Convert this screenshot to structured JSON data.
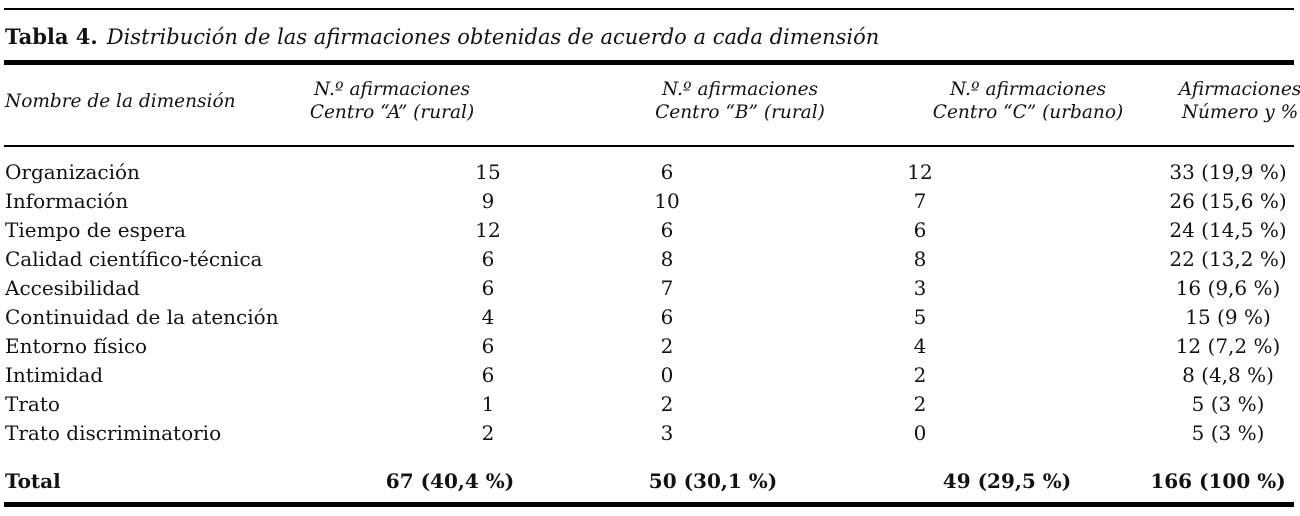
{
  "caption": {
    "label": "Tabla 4.",
    "text": "Distribución de las afirmaciones obtenidas de acuerdo a cada dimensión"
  },
  "table": {
    "columns": [
      {
        "header_lines": [
          "Nombre de la dimensión"
        ]
      },
      {
        "header_lines": [
          "N.º afirmaciones",
          "Centro “A” (rural)"
        ]
      },
      {
        "header_lines": [
          "N.º afirmaciones",
          "Centro “B” (rural)"
        ]
      },
      {
        "header_lines": [
          "N.º afirmaciones",
          "Centro “C” (urbano)"
        ]
      },
      {
        "header_lines": [
          "Afirmaciones",
          "Número y %"
        ]
      }
    ],
    "rows": [
      {
        "dimension": "Organización",
        "centro_a": "15",
        "centro_b": "6",
        "centro_c": "12",
        "afirmaciones": "33 (19,9 %)"
      },
      {
        "dimension": "Información",
        "centro_a": "9",
        "centro_b": "10",
        "centro_c": "7",
        "afirmaciones": "26 (15,6 %)"
      },
      {
        "dimension": "Tiempo de espera",
        "centro_a": "12",
        "centro_b": "6",
        "centro_c": "6",
        "afirmaciones": "24 (14,5 %)"
      },
      {
        "dimension": "Calidad científico-técnica",
        "centro_a": "6",
        "centro_b": "8",
        "centro_c": "8",
        "afirmaciones": "22 (13,2 %)"
      },
      {
        "dimension": "Accesibilidad",
        "centro_a": "6",
        "centro_b": "7",
        "centro_c": "3",
        "afirmaciones": "16 (9,6 %)"
      },
      {
        "dimension": "Continuidad de la atención",
        "centro_a": "4",
        "centro_b": "6",
        "centro_c": "5",
        "afirmaciones": "15 (9 %)"
      },
      {
        "dimension": "Entorno físico",
        "centro_a": "6",
        "centro_b": "2",
        "centro_c": "4",
        "afirmaciones": "12 (7,2 %)"
      },
      {
        "dimension": "Intimidad",
        "centro_a": "6",
        "centro_b": "0",
        "centro_c": "2",
        "afirmaciones": "8 (4,8 %)"
      },
      {
        "dimension": "Trato",
        "centro_a": "1",
        "centro_b": "2",
        "centro_c": "2",
        "afirmaciones": "5 (3 %)"
      },
      {
        "dimension": "Trato discriminatorio",
        "centro_a": "2",
        "centro_b": "3",
        "centro_c": "0",
        "afirmaciones": "5 (3 %)"
      }
    ],
    "total_row": {
      "label": "Total",
      "centro_a": "67 (40,4 %)",
      "centro_b": "50 (30,1 %)",
      "centro_c": "49 (29,5 %)",
      "afirmaciones": "166 (100 %)"
    }
  }
}
